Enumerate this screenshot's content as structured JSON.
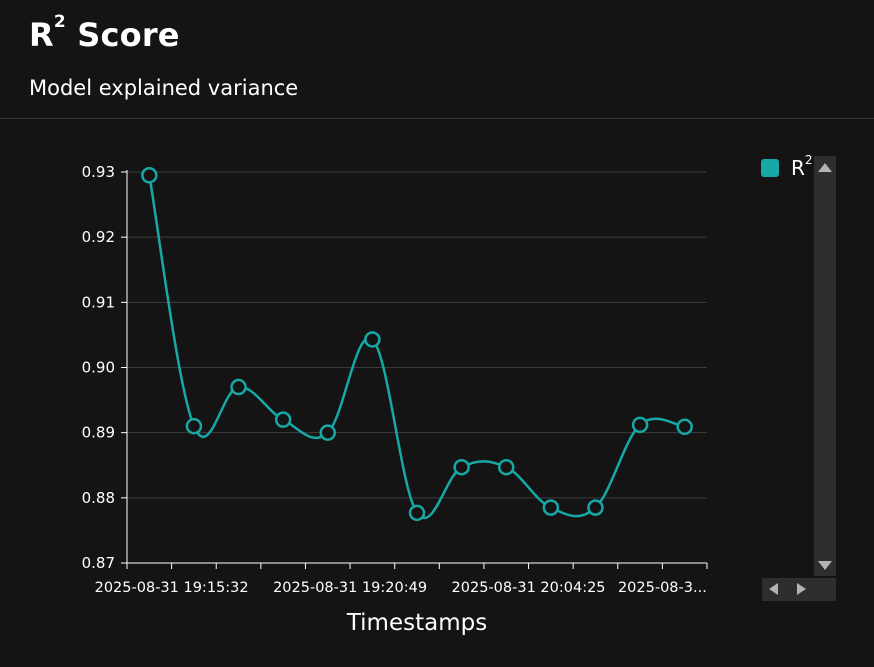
{
  "header": {
    "title_main": "R",
    "title_sup": "2",
    "title_rest": " Score",
    "subtitle": "Model explained variance"
  },
  "colors": {
    "series": "#17a8a6",
    "background": "#141414",
    "grid": "#3c3c3c"
  },
  "chart_data": {
    "type": "line",
    "title": "R² Score",
    "subtitle": "Model explained variance",
    "xlabel": "Timestamps",
    "ylabel": "",
    "ylim": [
      0.87,
      0.93
    ],
    "yticks": [
      "0.87",
      "0.88",
      "0.89",
      "0.90",
      "0.91",
      "0.92",
      "0.93"
    ],
    "xtick_labels": [
      "2025-08-31  19:15:32",
      "2025-08-31  19:20:49",
      "2025-08-31  20:04:25",
      "2025-08-3..."
    ],
    "grid": true,
    "legend": "top-right",
    "series": [
      {
        "name": "R²",
        "name_main": "R",
        "name_sup": "2",
        "values": [
          0.9295,
          0.891,
          0.897,
          0.892,
          0.89,
          0.9043,
          0.8777,
          0.8847,
          0.8847,
          0.8785,
          0.8785,
          0.8912,
          0.8909
        ]
      }
    ]
  },
  "scrollbars": {
    "up": "arrow-up-icon",
    "down": "arrow-down-icon",
    "left": "arrow-left-icon",
    "right": "arrow-right-icon"
  }
}
